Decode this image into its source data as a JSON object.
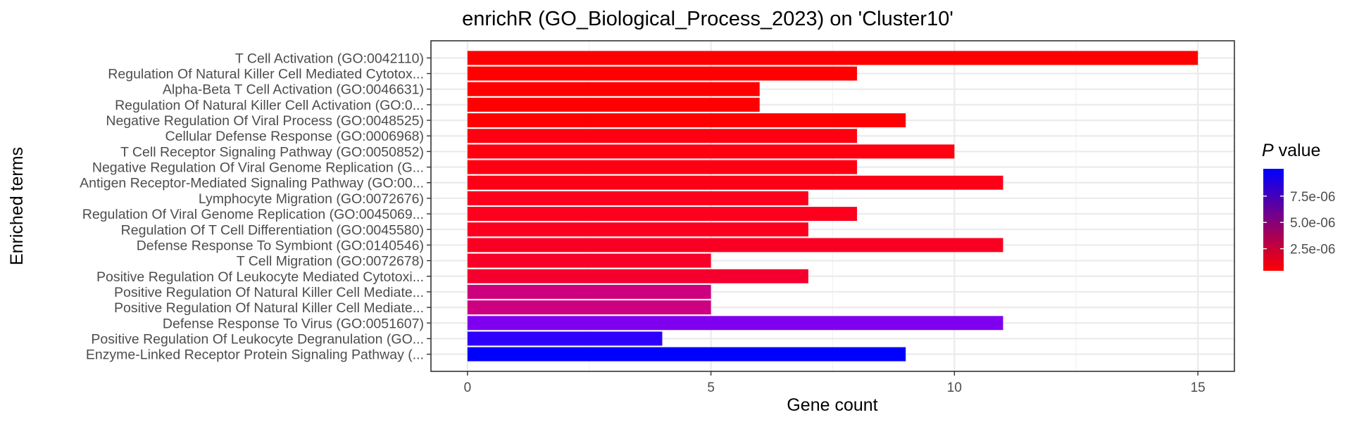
{
  "chart_data": {
    "type": "bar",
    "orientation": "horizontal",
    "title": "enrichR (GO_Biological_Process_2023) on 'Cluster10'",
    "xlabel": "Gene count",
    "ylabel": "Enriched terms",
    "xlim": [
      -0.75,
      15.75
    ],
    "xticks": [
      0,
      5,
      10,
      15
    ],
    "grid": true,
    "legend_position": "right",
    "legend": {
      "title_italic": "P",
      "title_rest": " value",
      "type": "gradient",
      "low_color": "#ff0000",
      "high_color": "#0000ff",
      "range": [
        4e-07,
        1.01e-05
      ],
      "ticks": [
        {
          "value": 2.5e-06,
          "label": "2.5e-06"
        },
        {
          "value": 5e-06,
          "label": "5.0e-06"
        },
        {
          "value": 7.5e-06,
          "label": "7.5e-06"
        }
      ]
    },
    "categories": [
      "T Cell Activation (GO:0042110)",
      "Regulation Of Natural Killer Cell Mediated Cytotox...",
      "Alpha-Beta T Cell Activation (GO:0046631)",
      "Regulation Of Natural Killer Cell Activation (GO:0...",
      "Negative Regulation Of Viral Process (GO:0048525)",
      "Cellular Defense Response (GO:0006968)",
      "T Cell Receptor Signaling Pathway (GO:0050852)",
      "Negative Regulation Of Viral Genome Replication (G...",
      "Antigen Receptor-Mediated Signaling Pathway (GO:00...",
      "Lymphocyte Migration (GO:0072676)",
      "Regulation Of Viral Genome Replication (GO:0045069...",
      "Regulation Of T Cell Differentiation (GO:0045580)",
      "Defense Response To Symbiont (GO:0140546)",
      "T Cell Migration (GO:0072678)",
      "Positive Regulation Of Leukocyte Mediated Cytotoxi...",
      "Positive Regulation Of Natural Killer Cell Mediate...",
      "Positive Regulation Of Natural Killer Cell Mediate...",
      "Defense Response To Virus (GO:0051607)",
      "Positive Regulation Of Leukocyte Degranulation (GO...",
      "Enzyme-Linked Receptor Protein Signaling Pathway (..."
    ],
    "values": [
      15,
      8,
      6,
      6,
      9,
      8,
      10,
      8,
      11,
      7,
      8,
      7,
      11,
      5,
      7,
      5,
      5,
      11,
      4,
      9
    ],
    "p_values": [
      5e-07,
      5e-07,
      5e-07,
      5e-07,
      5e-07,
      6e-07,
      6e-07,
      6e-07,
      8e-07,
      9e-07,
      9e-07,
      9e-07,
      1e-06,
      1.2e-06,
      1.3e-06,
      3.3e-06,
      3.4e-06,
      7.5e-06,
      9.5e-06,
      1.01e-05
    ],
    "colors": [
      "#ff0000",
      "#ff0000",
      "#ff0000",
      "#ff0000",
      "#ff0000",
      "#ff0010",
      "#ff0010",
      "#ff0012",
      "#fc0018",
      "#fc001c",
      "#fc001d",
      "#fb001e",
      "#f90022",
      "#f7002a",
      "#f5002e",
      "#cd007e",
      "#cc0080",
      "#7f00ee",
      "#2e00fb",
      "#0000ff"
    ]
  }
}
